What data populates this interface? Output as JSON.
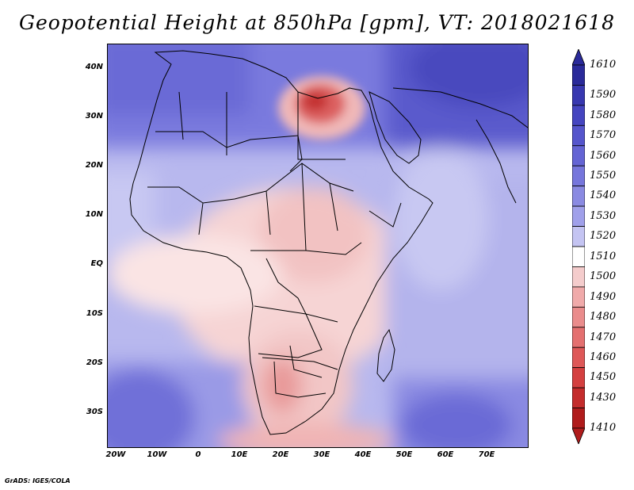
{
  "title": "Geopotential Height at 850hPa [gpm], VT: 2018021618",
  "footer": "GrADS: IGES/COLA",
  "axes": {
    "lat_labels": [
      "40N",
      "30N",
      "20N",
      "10N",
      "EQ",
      "10S",
      "20S",
      "30S"
    ],
    "lon_labels": [
      "20W",
      "10W",
      "0",
      "10E",
      "20E",
      "30E",
      "40E",
      "50E",
      "60E",
      "70E"
    ]
  },
  "colorbar": {
    "levels": [
      "1610",
      "1590",
      "1580",
      "1570",
      "1560",
      "1550",
      "1540",
      "1530",
      "1520",
      "1510",
      "1500",
      "1490",
      "1480",
      "1470",
      "1460",
      "1450",
      "1430",
      "1410"
    ],
    "colors": [
      "#2a2a9a",
      "#3838b0",
      "#4545c0",
      "#5555cc",
      "#6464d4",
      "#7676dc",
      "#8a8ae2",
      "#a0a0ea",
      "#c4c4f2",
      "#ffffff",
      "#f4cccc",
      "#f0aaaa",
      "#ea8c8c",
      "#e47070",
      "#de5858",
      "#d44040",
      "#c42c2c",
      "#b01c1c"
    ]
  },
  "map_data": {
    "field": "geopotential height 850hPa",
    "valid_time": "2018021618",
    "lon_range": [
      -20,
      80
    ],
    "lat_range": [
      -37,
      45
    ]
  }
}
